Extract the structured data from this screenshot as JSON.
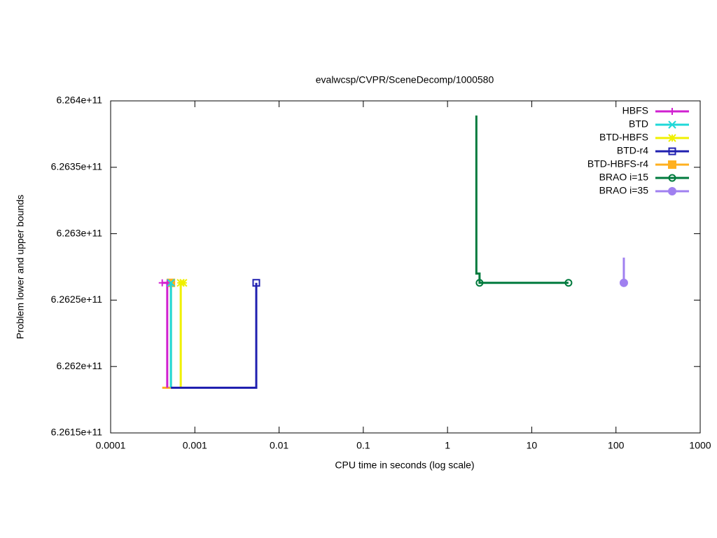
{
  "chart_data": {
    "type": "line",
    "title": "evalwcsp/CVPR/SceneDecomp/1000580",
    "x_label": "CPU time in seconds (log scale)",
    "y_label": "Problem lower and upper bounds",
    "x_scale": "log",
    "xlim": [
      0.0001,
      1000
    ],
    "xticks": [
      0.0001,
      0.001,
      0.01,
      0.1,
      1,
      10,
      100,
      1000
    ],
    "ylim": [
      626150000000,
      626400000000
    ],
    "yticks": [
      {
        "value": 626150000000,
        "label": "6.2615e+11"
      },
      {
        "value": 626200000000,
        "label": "6.262e+11"
      },
      {
        "value": 626250000000,
        "label": "6.2625e+11"
      },
      {
        "value": 626300000000,
        "label": "6.263e+11"
      },
      {
        "value": 626350000000,
        "label": "6.2635e+11"
      },
      {
        "value": 626400000000,
        "label": "6.264e+11"
      }
    ],
    "legend": "top-right",
    "grid": false,
    "series": [
      {
        "name": "BTD-HBFS-r4",
        "color": "#ffb020",
        "marker": "filled-square",
        "x": [
          0.00041,
          0.00052,
          0.00052
        ],
        "values": [
          626184000000,
          626184000000,
          626263000000
        ]
      },
      {
        "name": "HBFS",
        "color": "#d020d0",
        "marker": "plus",
        "x": [
          0.00047,
          0.00047,
          0.00041
        ],
        "values": [
          626184000000,
          626263000000,
          626263000000
        ]
      },
      {
        "name": "BTD",
        "color": "#20d8d8",
        "marker": "cross",
        "x": [
          0.00052,
          0.00052
        ],
        "values": [
          626184000000,
          626263000000
        ]
      },
      {
        "name": "BTD-HBFS",
        "color": "#f0f000",
        "marker": "star",
        "x": [
          0.00068,
          0.00068,
          0.00073
        ],
        "values": [
          626184000000,
          626263000000,
          626263000000
        ]
      },
      {
        "name": "BTD-r4",
        "color": "#2020b0",
        "marker": "open-square",
        "x": [
          0.00052,
          0.00536,
          0.00536
        ],
        "values": [
          626184000000,
          626184000000,
          626263000000
        ]
      },
      {
        "name": "BRAO i=15",
        "color": "#007a3d",
        "marker": "open-circle",
        "x": [
          2.2,
          2.2,
          2.4,
          2.4,
          27.3
        ],
        "values": [
          626389000000,
          626270000000,
          626270000000,
          626263000000,
          626263000000
        ]
      },
      {
        "name": "BRAO i=35",
        "color": "#a080f0",
        "marker": "filled-circle",
        "x": [
          124,
          124
        ],
        "values": [
          626282000000,
          626263000000
        ]
      }
    ]
  }
}
